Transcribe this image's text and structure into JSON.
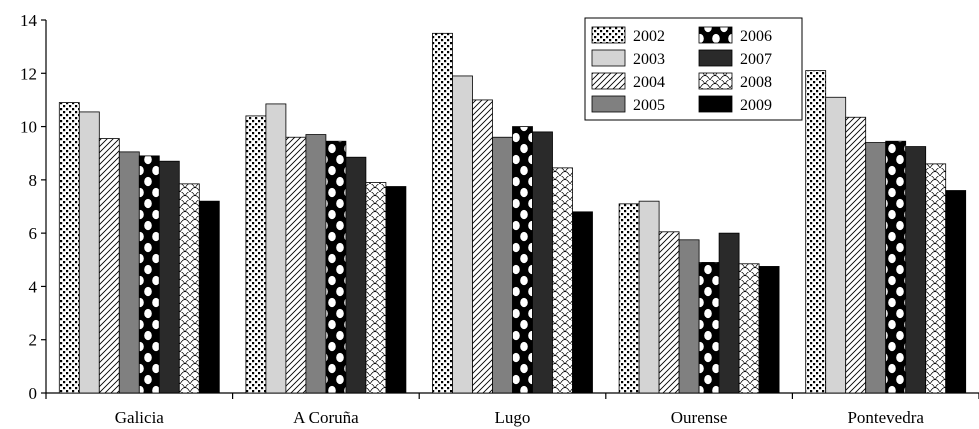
{
  "chart_data": {
    "type": "bar",
    "categories": [
      "Galicia",
      "A Coruña",
      "Lugo",
      "Ourense",
      "Pontevedra"
    ],
    "series": [
      {
        "name": "2002",
        "values": [
          10.9,
          10.4,
          13.5,
          7.1,
          12.1
        ],
        "pattern": "dots"
      },
      {
        "name": "2003",
        "values": [
          10.55,
          10.85,
          11.9,
          7.2,
          11.1
        ],
        "pattern": "light-gray"
      },
      {
        "name": "2004",
        "values": [
          9.55,
          9.6,
          11.0,
          6.05,
          10.35
        ],
        "pattern": "diagonal"
      },
      {
        "name": "2005",
        "values": [
          9.05,
          9.7,
          9.6,
          5.75,
          9.4
        ],
        "pattern": "gray"
      },
      {
        "name": "2006",
        "values": [
          8.9,
          9.45,
          10.0,
          4.9,
          9.45
        ],
        "pattern": "circles"
      },
      {
        "name": "2007",
        "values": [
          8.7,
          8.85,
          9.8,
          6.0,
          9.25
        ],
        "pattern": "dark"
      },
      {
        "name": "2008",
        "values": [
          7.85,
          7.9,
          8.45,
          4.85,
          8.6
        ],
        "pattern": "scales"
      },
      {
        "name": "2009",
        "values": [
          7.2,
          7.75,
          6.8,
          4.75,
          7.6
        ],
        "pattern": "black"
      }
    ],
    "yticks": [
      "0",
      "2",
      "4",
      "6",
      "8",
      "10",
      "12",
      "14"
    ],
    "ylim": [
      0,
      14
    ],
    "title": "",
    "xlabel": "",
    "ylabel": "",
    "legend_position": "top-right",
    "grid": false,
    "colors": {
      "light_gray": "#d4d4d4",
      "gray": "#808080",
      "dark": "#2a2a2a",
      "black": "#000000"
    }
  }
}
